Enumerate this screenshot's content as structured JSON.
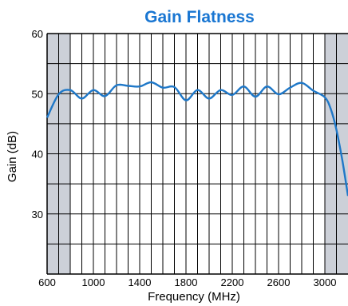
{
  "chart_data": {
    "type": "line",
    "title": "Gain Flatness",
    "xlabel": "Frequency (MHz)",
    "ylabel": "Gain (dB)",
    "xlim": [
      600,
      3200
    ],
    "ylim": [
      20,
      60
    ],
    "x_ticks": [
      600,
      1000,
      1400,
      1800,
      2200,
      2600,
      3000
    ],
    "x_tick_labels": [
      "600",
      "1000",
      "1400",
      "1800",
      "2200",
      "2600",
      "3000"
    ],
    "y_ticks": [
      30,
      40,
      50,
      60
    ],
    "y_tick_labels": [
      "30",
      "40",
      "50",
      "60"
    ],
    "grid": true,
    "shaded_x_ranges": [
      [
        600,
        800
      ],
      [
        3000,
        3200
      ]
    ],
    "colors": {
      "title": "#1976d2",
      "line": "#1f78c8",
      "shade": "#ccd0d8",
      "grid": "#000000"
    },
    "series": [
      {
        "x": [
          600,
          630,
          660,
          690,
          720,
          750,
          780,
          810,
          840,
          870,
          900,
          930,
          960,
          990,
          1020,
          1050,
          1080,
          1110,
          1140,
          1170,
          1200,
          1230,
          1260,
          1290,
          1320,
          1350,
          1380,
          1410,
          1440,
          1470,
          1500,
          1530,
          1560,
          1590,
          1620,
          1650,
          1680,
          1710,
          1740,
          1770,
          1800,
          1830,
          1860,
          1890,
          1920,
          1950,
          1980,
          2010,
          2040,
          2070,
          2100,
          2130,
          2160,
          2190,
          2220,
          2250,
          2280,
          2310,
          2340,
          2370,
          2400,
          2430,
          2460,
          2490,
          2520,
          2550,
          2580,
          2610,
          2640,
          2670,
          2700,
          2730,
          2760,
          2790,
          2820,
          2850,
          2880,
          2910,
          2940,
          2970,
          3000,
          3030,
          3060,
          3090,
          3120,
          3150,
          3180,
          3200
        ],
        "y": [
          46.0,
          46.5,
          47.7,
          49.5,
          50.8,
          51.0,
          50.5,
          49.8,
          49.2,
          48.9,
          49.2,
          50.0,
          50.6,
          50.5,
          49.8,
          49.3,
          49.5,
          50.3,
          51.1,
          51.5,
          51.3,
          50.9,
          50.9,
          51.2,
          51.7,
          51.8,
          51.4,
          50.9,
          51.1,
          51.7,
          51.9,
          51.3,
          50.7,
          50.4,
          50.6,
          50.9,
          50.6,
          49.8,
          49.1,
          48.8,
          48.9,
          49.5,
          50.2,
          50.7,
          50.5,
          49.9,
          49.3,
          49.1,
          49.6,
          50.3,
          50.5,
          50.0,
          49.6,
          49.8,
          50.4,
          51.0,
          51.2,
          50.4,
          49.6,
          49.4,
          49.9,
          50.7,
          51.2,
          51.0,
          50.4,
          50.0,
          50.1,
          50.7,
          51.3,
          51.8,
          51.7,
          51.1,
          50.6,
          50.0,
          49.3,
          48.0,
          46.3,
          44.6,
          42.3,
          39.2,
          36.0,
          33.8,
          33.4,
          33.0,
          32.6,
          32.3,
          32.1,
          32.0
        ],
        "x_fix": [
          600,
          700,
          800,
          900,
          1000,
          1100,
          1200,
          1300,
          1400,
          1500,
          1600,
          1700,
          1800,
          1900,
          2000,
          2100,
          2200,
          2300,
          2400,
          2500,
          2600,
          2700,
          2800,
          2900,
          3000,
          3050,
          3100,
          3150,
          3200
        ],
        "y_fix": [
          46.0,
          49.9,
          50.6,
          49.2,
          50.6,
          49.6,
          51.4,
          51.3,
          51.2,
          51.9,
          51.0,
          51.1,
          48.9,
          50.6,
          49.2,
          50.6,
          49.8,
          51.2,
          49.5,
          51.2,
          49.9,
          51.0,
          51.8,
          50.5,
          49.4,
          47.5,
          44.0,
          39.0,
          33.0
        ]
      }
    ]
  }
}
